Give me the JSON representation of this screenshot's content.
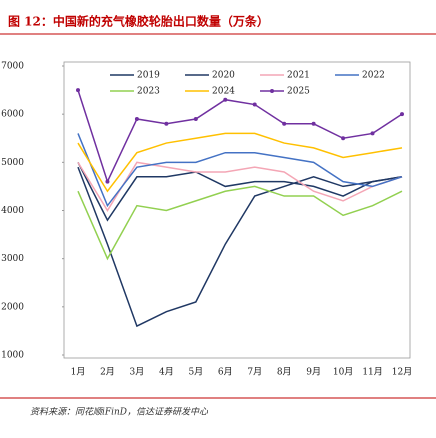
{
  "chart_data": {
    "type": "line",
    "title": "图 12：中国新的充气橡胶轮胎出口数量（万条）",
    "source": "资料来源：同花顺iFinD，信达证券研发中心",
    "categories": [
      "1月",
      "2月",
      "3月",
      "4月",
      "5月",
      "6月",
      "7月",
      "8月",
      "9月",
      "10月",
      "11月",
      "12月"
    ],
    "ylim": [
      1000,
      7000
    ],
    "yticks": [
      1000,
      2000,
      3000,
      4000,
      5000,
      6000,
      7000
    ],
    "series": [
      {
        "name": "2019",
        "color": "#1f3864",
        "values": [
          5000,
          3800,
          4700,
          4700,
          4800,
          4500,
          4600,
          4600,
          4500,
          4300,
          4600,
          4700
        ]
      },
      {
        "name": "2020",
        "color": "#203864",
        "values": [
          4900,
          3300,
          1600,
          1900,
          2100,
          3300,
          4300,
          4500,
          4700,
          4500,
          4600,
          4700
        ]
      },
      {
        "name": "2021",
        "color": "#f4a6b5",
        "values": [
          5000,
          4000,
          5000,
          4900,
          4800,
          4800,
          4900,
          4800,
          4400,
          4200,
          4500,
          4700
        ]
      },
      {
        "name": "2022",
        "color": "#4472c4",
        "values": [
          5600,
          4100,
          4900,
          5000,
          5000,
          5200,
          5200,
          5100,
          5000,
          4600,
          4500,
          4700
        ]
      },
      {
        "name": "2023",
        "color": "#92d050",
        "values": [
          4400,
          3000,
          4100,
          4000,
          4200,
          4400,
          4500,
          4300,
          4300,
          3900,
          4100,
          4400
        ]
      },
      {
        "name": "2024",
        "color": "#ffc000",
        "values": [
          5400,
          4400,
          5200,
          5400,
          5500,
          5600,
          5600,
          5400,
          5300,
          5100,
          5200,
          5300
        ]
      },
      {
        "name": "2025",
        "color": "#7030a0",
        "values": [
          6500,
          4600,
          5900,
          5800,
          5900,
          6300,
          6200,
          5800,
          5800,
          5500,
          5600,
          6000
        ]
      }
    ]
  }
}
